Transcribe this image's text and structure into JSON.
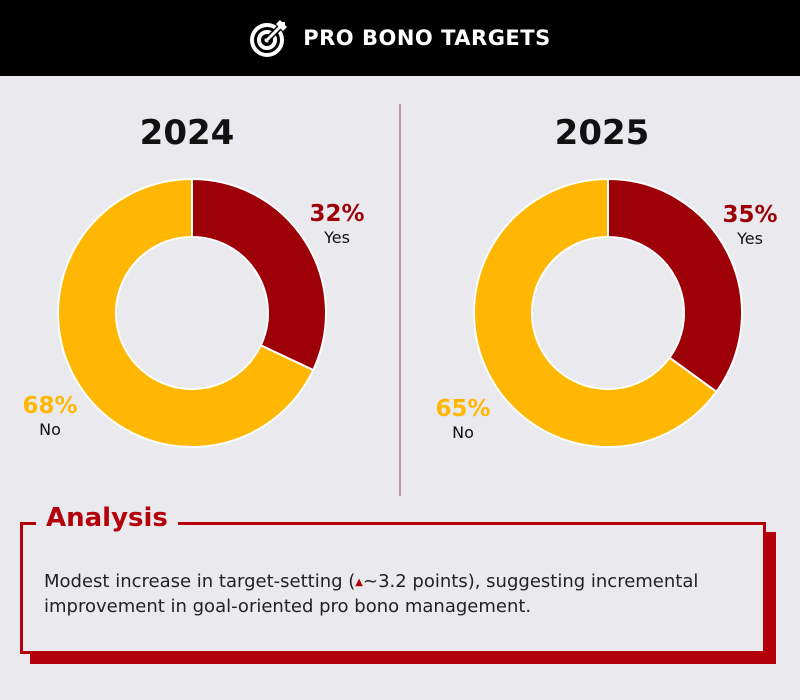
{
  "header": {
    "title": "PRO BONO TARGETS",
    "icon": "target-arrow-icon"
  },
  "colors": {
    "yes": "#9e0008",
    "no": "#ffb703",
    "accent": "#b3000a"
  },
  "chart_data": [
    {
      "type": "pie",
      "title": "2024",
      "categories": [
        "Yes",
        "No"
      ],
      "values": [
        32,
        68
      ],
      "labels": [
        "32%",
        "68%"
      ]
    },
    {
      "type": "pie",
      "title": "2025",
      "categories": [
        "Yes",
        "No"
      ],
      "values": [
        35,
        65
      ],
      "labels": [
        "35%",
        "65%"
      ]
    }
  ],
  "analysis": {
    "title": "Analysis",
    "text_before": "Modest increase in target-setting (",
    "arrow": "▲",
    "text_after": "~3.2 points), suggesting incremental improvement in goal-oriented pro bono management."
  }
}
